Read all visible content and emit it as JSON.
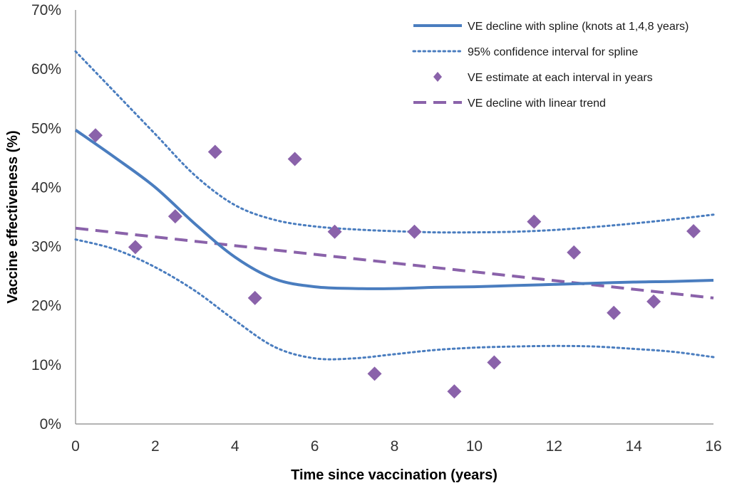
{
  "chart_data": {
    "type": "line",
    "xlabel": "Time since vaccination (years)",
    "ylabel": "Vaccine effectiveness (%)",
    "xlim": [
      0,
      16
    ],
    "ylim": [
      0,
      70
    ],
    "xticks": [
      0,
      2,
      4,
      6,
      8,
      10,
      12,
      14,
      16
    ],
    "yticks": [
      0,
      10,
      20,
      30,
      40,
      50,
      60,
      70
    ],
    "y_format": "percent",
    "grid": false,
    "legend_position": "top-right",
    "colors": {
      "spline": "#4a7dbf",
      "ci": "#4a7dbf",
      "points": "#8a62aa",
      "linear": "#8a62aa"
    },
    "series": [
      {
        "name": "VE decline with spline (knots at 1,4,8 years)",
        "style": "solid",
        "x": [
          0,
          1,
          2,
          3,
          4,
          5,
          6,
          7,
          8,
          9,
          10,
          11,
          12,
          13,
          14,
          15,
          16
        ],
        "y": [
          49.7,
          45,
          40,
          33.8,
          28.2,
          24.5,
          23.2,
          22.9,
          22.9,
          23.1,
          23.2,
          23.4,
          23.6,
          23.8,
          24.0,
          24.1,
          24.3
        ]
      },
      {
        "name": "95% confidence interval for spline",
        "style": "dotted",
        "x": [
          0,
          1,
          2,
          3,
          4,
          5,
          6,
          7,
          8,
          9,
          10,
          11,
          12,
          13,
          14,
          15,
          16
        ],
        "y": [
          63,
          56,
          49,
          42,
          37,
          34.5,
          33.4,
          32.9,
          32.6,
          32.4,
          32.4,
          32.5,
          32.8,
          33.3,
          33.9,
          34.6,
          35.4
        ]
      },
      {
        "name": "",
        "style": "dotted",
        "x": [
          0,
          1,
          2,
          3,
          4,
          5,
          6,
          7,
          8,
          9,
          10,
          11,
          12,
          13,
          14,
          15,
          16
        ],
        "y": [
          31.2,
          29.5,
          26.5,
          22.5,
          17.5,
          13,
          11.1,
          11.1,
          11.8,
          12.5,
          12.9,
          13.1,
          13.2,
          13.1,
          12.7,
          12.2,
          11.3
        ]
      },
      {
        "name": "VE estimate at each interval in years",
        "style": "marker",
        "x": [
          0.5,
          1.5,
          2.5,
          3.5,
          4.5,
          5.5,
          6.5,
          7.5,
          8.5,
          9.5,
          10.5,
          11.5,
          12.5,
          13.5,
          14.5,
          15.5
        ],
        "y": [
          48.8,
          29.9,
          35.1,
          46.0,
          21.3,
          44.8,
          32.5,
          8.5,
          32.5,
          5.5,
          10.4,
          34.2,
          29.0,
          18.8,
          20.7,
          32.6
        ]
      },
      {
        "name": "VE decline with linear trend",
        "style": "dashed",
        "x": [
          0,
          16
        ],
        "y": [
          33.1,
          21.3
        ]
      }
    ]
  }
}
